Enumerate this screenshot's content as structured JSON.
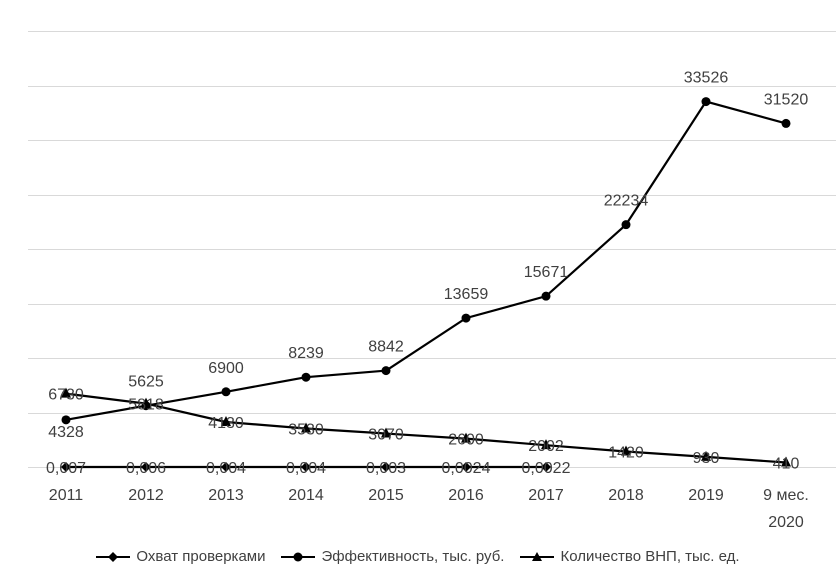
{
  "chart_data": {
    "type": "line",
    "categories": [
      "2011",
      "2012",
      "2013",
      "2014",
      "2015",
      "2016",
      "2017",
      "2018",
      "2019",
      "9 мес. 2020"
    ],
    "ylim": [
      0,
      40000
    ],
    "grid": true,
    "legend_position": "bottom",
    "series": [
      {
        "name": "Охват проверками",
        "marker": "diamond",
        "values": [
          0.007,
          0.006,
          0.004,
          0.004,
          0.003,
          0.0024,
          0.0022,
          null,
          null,
          null
        ],
        "labels": [
          "0,007",
          "0,006",
          "0,004",
          "0,004",
          "0,003",
          "0,0024",
          "0,0022",
          "",
          "",
          ""
        ]
      },
      {
        "name": "Эффективность, тыс. руб.",
        "marker": "circle",
        "values": [
          4328,
          5625,
          6900,
          8239,
          8842,
          13659,
          15671,
          22234,
          33526,
          31520
        ],
        "labels": [
          "4328",
          "5625",
          "6900",
          "8239",
          "8842",
          "13659",
          "15671",
          "22234",
          "33526",
          "31520"
        ]
      },
      {
        "name": "Количество ВНП, тыс. ед.",
        "marker": "triangle",
        "values": [
          6730,
          5818,
          4130,
          3530,
          3070,
          2600,
          2002,
          1420,
          930,
          410
        ],
        "labels": [
          "6730",
          "5818",
          "4130",
          "3530",
          "3070",
          "2600",
          "2002",
          "1420",
          "930",
          "410"
        ]
      }
    ],
    "colors": {
      "line": "#000000",
      "grid": "#d9d9d9",
      "text": "#404040"
    }
  }
}
